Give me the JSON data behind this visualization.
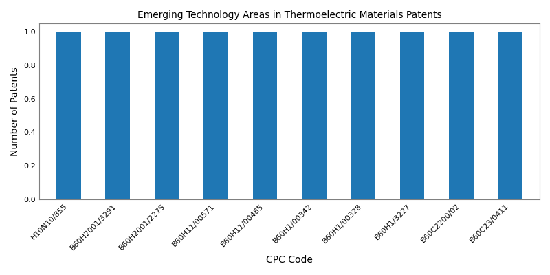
{
  "title": "Emerging Technology Areas in Thermoelectric Materials Patents",
  "xlabel": "CPC Code",
  "ylabel": "Number of Patents",
  "categories": [
    "H10N10/855",
    "B60H2001/3291",
    "B60H2001/2275",
    "B60H11/00571",
    "B60H11/00485",
    "B60H1/00342",
    "B60H1/00328",
    "B60H1/3227",
    "B60C2200/02",
    "B60C23/0411"
  ],
  "values": [
    1,
    1,
    1,
    1,
    1,
    1,
    1,
    1,
    1,
    1
  ],
  "bar_color": "#1f77b4",
  "ylim": [
    0,
    1.05
  ],
  "yticks": [
    0.0,
    0.2,
    0.4,
    0.6,
    0.8,
    1.0
  ],
  "figsize": [
    8,
    4
  ],
  "dpi": 100,
  "title_fontsize": 10,
  "label_fontsize": 10,
  "tick_fontsize": 8,
  "bar_width": 0.5
}
